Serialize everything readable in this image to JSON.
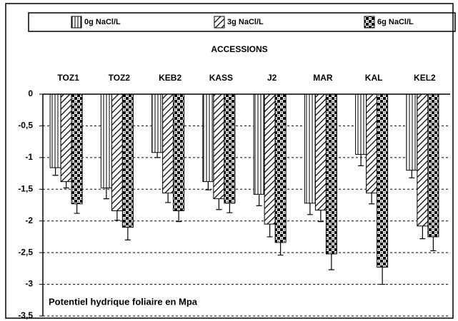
{
  "chart_data": {
    "type": "bar",
    "xlabel": "ACCESSIONS",
    "annotation": "Potentiel hydrique foliaire en Mpa",
    "categories": [
      "TOZ1",
      "TOZ2",
      "KEB2",
      "KASS",
      "J2",
      "MAR",
      "KAL",
      "KEL2"
    ],
    "series": [
      {
        "name": "0g NaCl/L",
        "color": "#000000",
        "pattern": "vertical",
        "values": [
          -1.16,
          -1.48,
          -0.92,
          -1.38,
          -1.58,
          -1.72,
          -0.95,
          -1.2
        ],
        "errors": [
          0.12,
          0.17,
          0.08,
          0.13,
          0.18,
          0.18,
          0.18,
          0.12
        ]
      },
      {
        "name": "3g NaCl/L",
        "color": "#000000",
        "pattern": "diagonal",
        "values": [
          -1.38,
          -1.84,
          -1.56,
          -1.65,
          -2.05,
          -1.83,
          -1.56,
          -2.08
        ],
        "errors": [
          0.1,
          0.15,
          0.15,
          0.17,
          0.2,
          0.18,
          0.17,
          0.2
        ]
      },
      {
        "name": "6g NaCl/L",
        "color": "#000000",
        "pattern": "checker",
        "values": [
          -1.73,
          -2.1,
          -1.84,
          -1.72,
          -2.34,
          -2.52,
          -2.73,
          -2.25
        ],
        "errors": [
          0.15,
          0.2,
          0.17,
          0.15,
          0.2,
          0.25,
          0.27,
          0.22
        ]
      }
    ],
    "ylim": [
      0,
      -3.5
    ],
    "yticks": [
      0,
      {
        "value": -0.5,
        "label": "-0,5"
      },
      -1,
      {
        "value": -1.5,
        "label": "-1,5"
      },
      -2,
      {
        "value": -2.5,
        "label": "-2,5"
      },
      -3,
      {
        "value": -3.5,
        "label": "-3,5"
      }
    ],
    "grid": true,
    "legend": "top"
  }
}
